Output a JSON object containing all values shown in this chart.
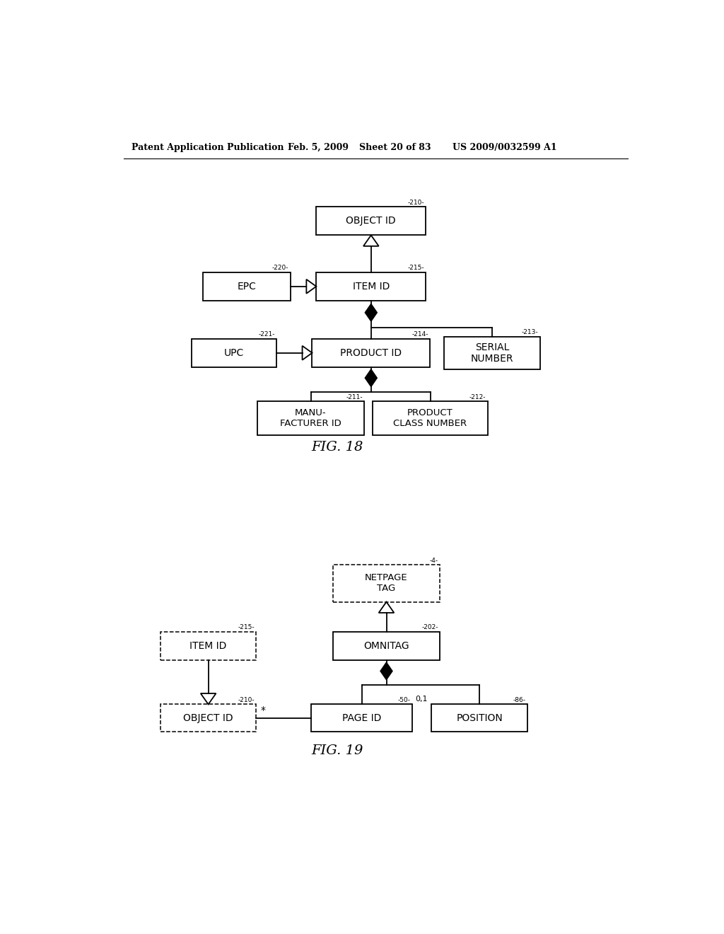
{
  "bg_color": "#ffffff",
  "header_text": "Patent Application Publication",
  "header_date": "Feb. 5, 2009",
  "header_sheet": "Sheet 20 of 83",
  "header_patent": "US 2009/0032599 A1",
  "fig18_label": "FIG. 18",
  "fig19_label": "FIG. 19"
}
